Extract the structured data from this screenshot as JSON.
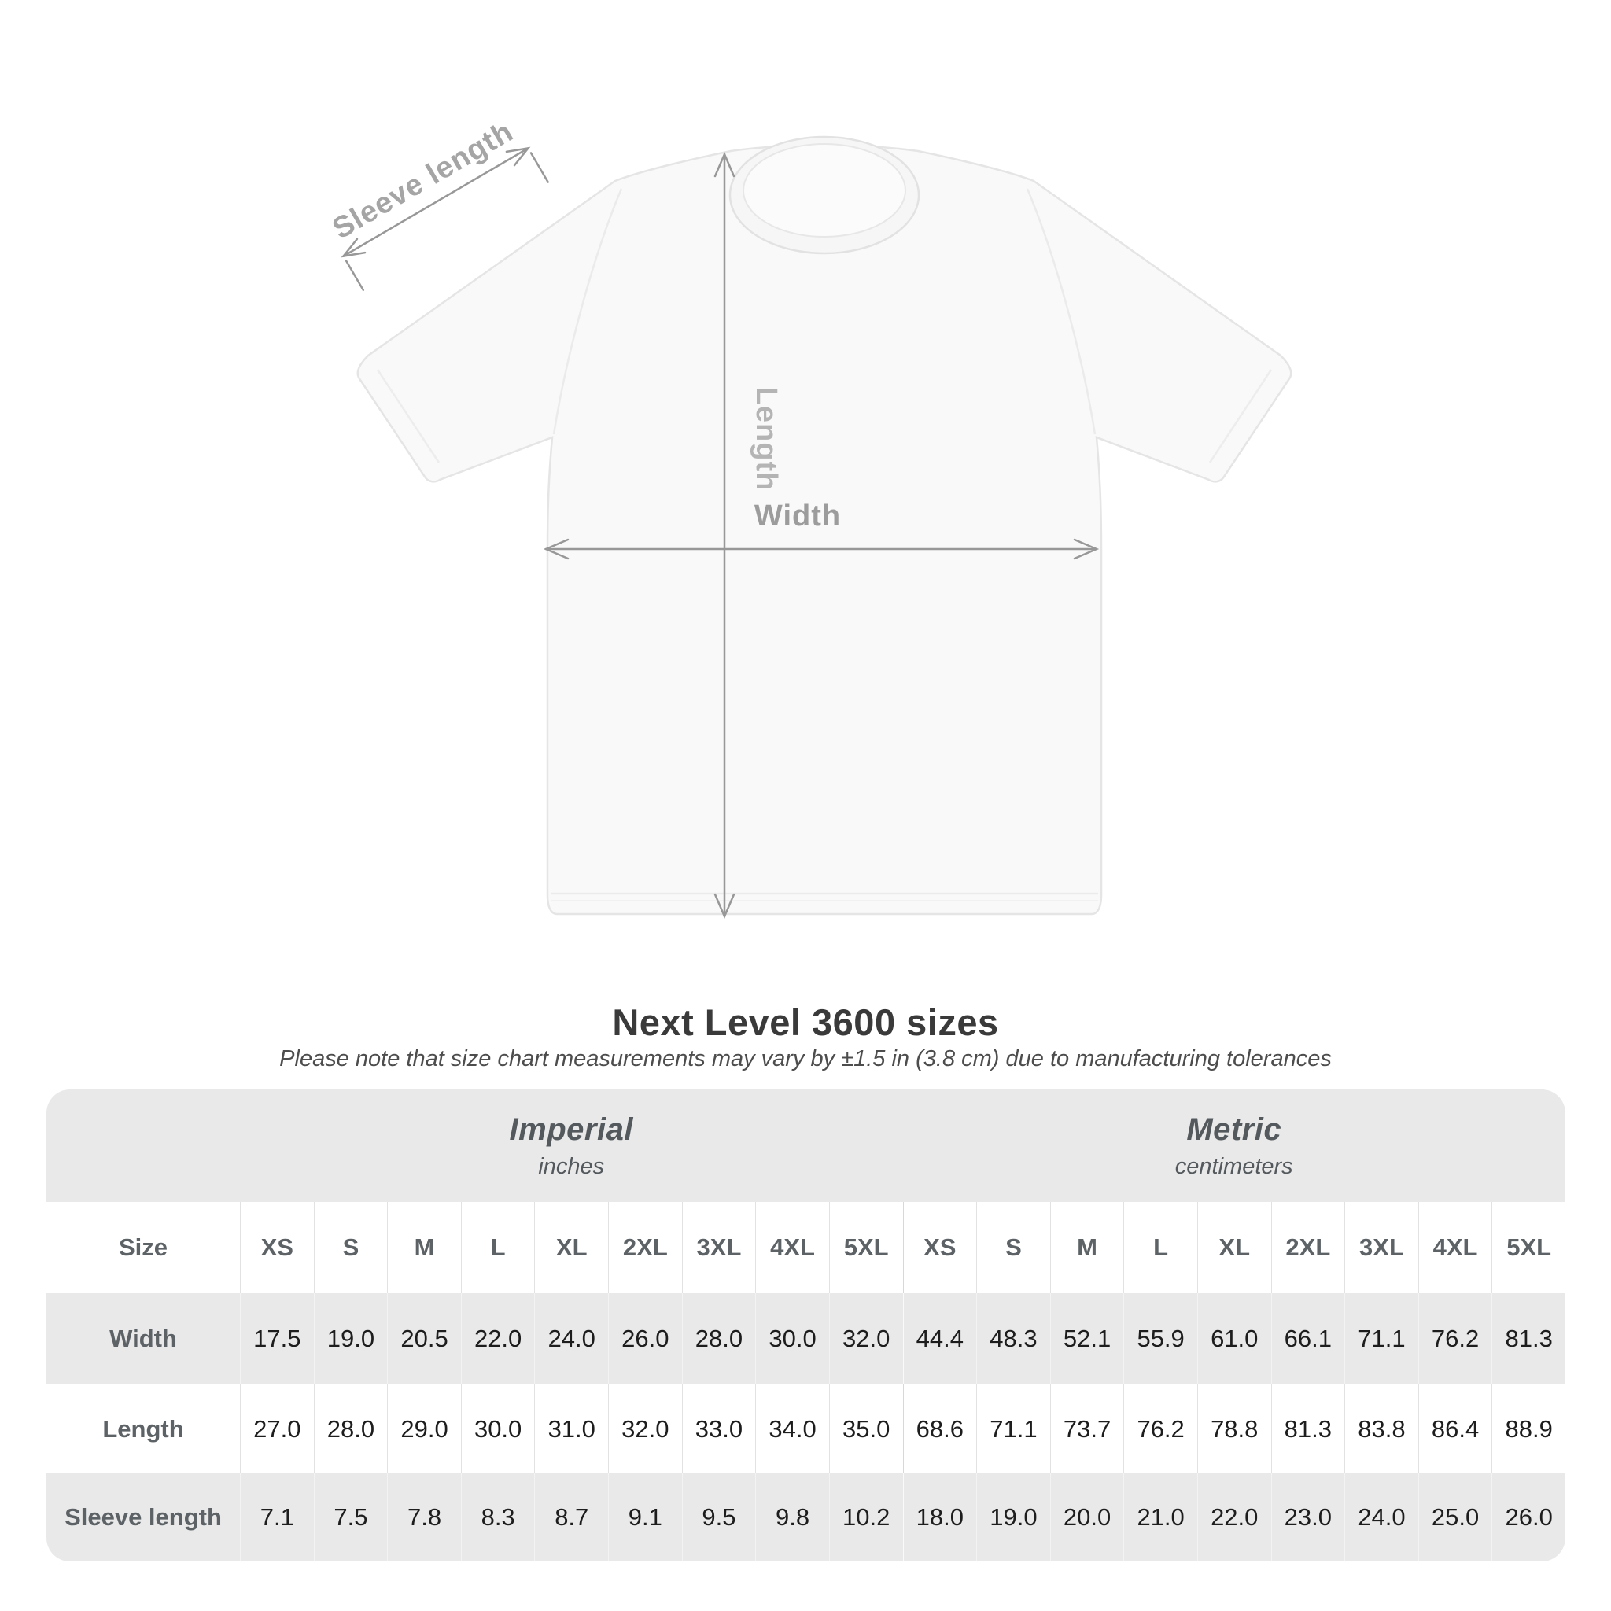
{
  "heading": {
    "title": "Next Level 3600 sizes",
    "subtitle": "Please note that size chart measurements may vary by ±1.5 in (3.8 cm) due to manufacturing tolerances"
  },
  "diagram": {
    "sleeve_label": "Sleeve length",
    "length_label": "Length",
    "width_label": "Width",
    "arrow_color": "#989898",
    "sleeve_label_color": "#a5a5a5",
    "length_label_color": "#b4b4b4",
    "width_label_color": "#9c9c9c",
    "shirt_fill": "#f9f9f9",
    "shirt_outline": "#e5e5e5"
  },
  "table": {
    "size_label": "Size",
    "sizes": [
      "XS",
      "S",
      "M",
      "L",
      "XL",
      "2XL",
      "3XL",
      "4XL",
      "5XL"
    ],
    "unit_groups": [
      {
        "name": "Imperial",
        "unit": "inches"
      },
      {
        "name": "Metric",
        "unit": "centimeters"
      }
    ],
    "rows": [
      {
        "label": "Width",
        "imperial": [
          "17.5",
          "19.0",
          "20.5",
          "22.0",
          "24.0",
          "26.0",
          "28.0",
          "30.0",
          "32.0"
        ],
        "metric": [
          "44.4",
          "48.3",
          "52.1",
          "55.9",
          "61.0",
          "66.1",
          "71.1",
          "76.2",
          "81.3"
        ]
      },
      {
        "label": "Length",
        "imperial": [
          "27.0",
          "28.0",
          "29.0",
          "30.0",
          "31.0",
          "32.0",
          "33.0",
          "34.0",
          "35.0"
        ],
        "metric": [
          "68.6",
          "71.1",
          "73.7",
          "76.2",
          "78.8",
          "81.3",
          "83.8",
          "86.4",
          "88.9"
        ]
      },
      {
        "label": "Sleeve length",
        "imperial": [
          "7.1",
          "7.5",
          "7.8",
          "8.3",
          "8.7",
          "9.1",
          "9.5",
          "9.8",
          "10.2"
        ],
        "metric": [
          "18.0",
          "19.0",
          "20.0",
          "21.0",
          "22.0",
          "23.0",
          "24.0",
          "25.0",
          "26.0"
        ]
      }
    ],
    "band_color": "#e9e9e9",
    "header_text_color": "#5c6265",
    "value_text_color": "#1d1d1d"
  }
}
